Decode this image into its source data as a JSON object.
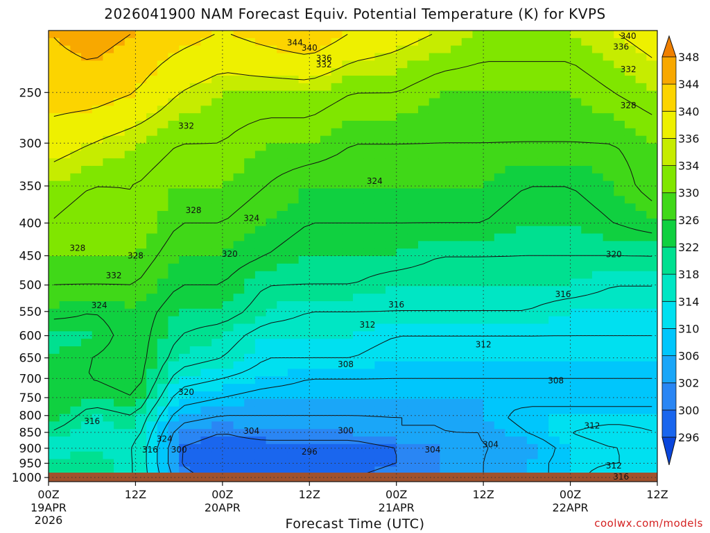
{
  "title": "2026041900 NAM Forecast Equiv. Potential Temperature (K) for KVPS",
  "credit": "coolwx.com/models",
  "colors": {
    "ground": "#a0522d",
    "contour": "#111111",
    "grid_dots": "#333333",
    "credit": "#d42020"
  },
  "chart_data": {
    "type": "heatmap",
    "title": "2026041900 NAM Forecast Equiv. Potential Temperature (K) for KVPS",
    "xlabel": "Forecast Time (UTC)",
    "ylabel": "",
    "variable_units": "K",
    "x_axis": {
      "range_hours": [
        0,
        84
      ],
      "ticks": [
        {
          "hour": 0,
          "label": "00Z",
          "sub": "19APR",
          "sub2": "2026"
        },
        {
          "hour": 12,
          "label": "12Z",
          "sub": "",
          "sub2": ""
        },
        {
          "hour": 24,
          "label": "00Z",
          "sub": "20APR",
          "sub2": ""
        },
        {
          "hour": 36,
          "label": "12Z",
          "sub": "",
          "sub2": ""
        },
        {
          "hour": 48,
          "label": "00Z",
          "sub": "21APR",
          "sub2": ""
        },
        {
          "hour": 60,
          "label": "12Z",
          "sub": "",
          "sub2": ""
        },
        {
          "hour": 72,
          "label": "00Z",
          "sub": "22APR",
          "sub2": ""
        },
        {
          "hour": 84,
          "label": "12Z",
          "sub": "",
          "sub2": ""
        }
      ]
    },
    "y_axis": {
      "units": "hPa",
      "scale": "log",
      "range": [
        1015,
        200
      ],
      "ticks": [
        250,
        300,
        350,
        400,
        450,
        500,
        550,
        600,
        650,
        700,
        750,
        800,
        850,
        900,
        950,
        1000
      ]
    },
    "grid": true,
    "colorbar": {
      "levels": [
        296,
        300,
        302,
        306,
        310,
        314,
        318,
        322,
        326,
        330,
        334,
        336,
        340,
        344,
        348
      ],
      "colors": [
        "#0a46dc",
        "#1a66ee",
        "#2a86f4",
        "#1aa6f8",
        "#00c6fc",
        "#00e0f0",
        "#00e6c4",
        "#00e090",
        "#10d040",
        "#40d818",
        "#80e600",
        "#c6ec00",
        "#eef000",
        "#fcd400",
        "#f8a800",
        "#f08000"
      ],
      "extends": "both"
    },
    "series": [
      {
        "name": "",
        "time_hours": [
          0,
          6,
          12,
          18,
          24,
          30,
          36,
          42,
          48,
          54,
          60,
          66,
          72,
          78,
          84
        ],
        "profiles_hPa": [
          1000,
          950,
          900,
          850,
          800,
          750,
          700,
          650,
          600,
          550,
          500,
          450,
          400,
          350,
          300,
          250,
          200
        ],
        "values_K": [
          [
            318,
            318,
            316,
            320,
            324,
            324,
            324,
            322,
            320,
            326,
            328,
            330,
            332,
            334,
            338,
            342,
            344
          ],
          [
            320,
            320,
            318,
            316,
            318,
            322,
            324,
            324,
            322,
            324,
            328,
            330,
            330,
            332,
            336,
            342,
            346
          ],
          [
            316,
            316,
            316,
            318,
            320,
            324,
            326,
            326,
            326,
            326,
            328,
            330,
            332,
            332,
            334,
            340,
            344
          ],
          [
            302,
            300,
            300,
            302,
            306,
            310,
            314,
            318,
            320,
            322,
            324,
            326,
            328,
            330,
            332,
            336,
            342
          ],
          [
            298,
            296,
            298,
            300,
            304,
            308,
            312,
            316,
            318,
            322,
            324,
            326,
            328,
            330,
            332,
            334,
            340
          ],
          [
            298,
            296,
            298,
            302,
            304,
            306,
            310,
            312,
            314,
            318,
            320,
            324,
            326,
            328,
            330,
            334,
            342
          ],
          [
            300,
            296,
            298,
            302,
            304,
            306,
            308,
            312,
            314,
            316,
            320,
            322,
            324,
            326,
            330,
            334,
            344
          ],
          [
            300,
            298,
            298,
            302,
            304,
            306,
            308,
            312,
            314,
            316,
            320,
            322,
            324,
            326,
            328,
            332,
            340
          ],
          [
            302,
            300,
            300,
            304,
            304,
            306,
            308,
            310,
            312,
            316,
            318,
            322,
            324,
            326,
            328,
            332,
            338
          ],
          [
            302,
            302,
            302,
            304,
            304,
            306,
            308,
            310,
            312,
            316,
            318,
            320,
            324,
            326,
            328,
            330,
            336
          ],
          [
            304,
            304,
            304,
            304,
            306,
            306,
            308,
            310,
            312,
            316,
            318,
            320,
            324,
            326,
            328,
            330,
            334
          ],
          [
            306,
            306,
            304,
            308,
            310,
            306,
            308,
            310,
            312,
            316,
            318,
            320,
            322,
            324,
            328,
            330,
            334
          ],
          [
            310,
            310,
            310,
            312,
            310,
            306,
            308,
            310,
            312,
            314,
            318,
            320,
            322,
            324,
            328,
            330,
            334
          ],
          [
            316,
            312,
            312,
            314,
            310,
            306,
            308,
            310,
            312,
            314,
            316,
            320,
            324,
            326,
            328,
            332,
            336
          ],
          [
            316,
            312,
            312,
            312,
            310,
            306,
            308,
            310,
            312,
            314,
            316,
            320,
            326,
            330,
            330,
            334,
            338
          ]
        ]
      }
    ],
    "contour_labels": [
      {
        "text": "344",
        "hour": 34,
        "p": 209
      },
      {
        "text": "340",
        "hour": 36,
        "p": 213
      },
      {
        "text": "336",
        "hour": 38,
        "p": 221
      },
      {
        "text": "332",
        "hour": 38,
        "p": 226
      },
      {
        "text": "340",
        "hour": 80,
        "p": 204
      },
      {
        "text": "336",
        "hour": 79,
        "p": 212
      },
      {
        "text": "332",
        "hour": 80,
        "p": 230
      },
      {
        "text": "328",
        "hour": 80,
        "p": 262
      },
      {
        "text": "332",
        "hour": 19,
        "p": 282
      },
      {
        "text": "324",
        "hour": 45,
        "p": 344
      },
      {
        "text": "328",
        "hour": 20,
        "p": 382
      },
      {
        "text": "324",
        "hour": 28,
        "p": 393
      },
      {
        "text": "328",
        "hour": 4,
        "p": 438
      },
      {
        "text": "328",
        "hour": 12,
        "p": 450
      },
      {
        "text": "320",
        "hour": 25,
        "p": 447
      },
      {
        "text": "320",
        "hour": 78,
        "p": 448
      },
      {
        "text": "332",
        "hour": 9,
        "p": 483
      },
      {
        "text": "316",
        "hour": 48,
        "p": 537
      },
      {
        "text": "316",
        "hour": 71,
        "p": 517
      },
      {
        "text": "324",
        "hour": 7,
        "p": 538
      },
      {
        "text": "312",
        "hour": 44,
        "p": 577
      },
      {
        "text": "312",
        "hour": 60,
        "p": 620
      },
      {
        "text": "308",
        "hour": 41,
        "p": 665
      },
      {
        "text": "308",
        "hour": 70,
        "p": 706
      },
      {
        "text": "320",
        "hour": 19,
        "p": 735
      },
      {
        "text": "316",
        "hour": 6,
        "p": 817
      },
      {
        "text": "304",
        "hour": 28,
        "p": 846
      },
      {
        "text": "300",
        "hour": 41,
        "p": 845
      },
      {
        "text": "312",
        "hour": 75,
        "p": 830
      },
      {
        "text": "324",
        "hour": 16,
        "p": 870
      },
      {
        "text": "316",
        "hour": 14,
        "p": 905
      },
      {
        "text": "300",
        "hour": 18,
        "p": 905
      },
      {
        "text": "296",
        "hour": 36,
        "p": 912
      },
      {
        "text": "304",
        "hour": 53,
        "p": 905
      },
      {
        "text": "304",
        "hour": 61,
        "p": 888
      },
      {
        "text": "312",
        "hour": 78,
        "p": 958
      },
      {
        "text": "316",
        "hour": 79,
        "p": 997
      }
    ]
  }
}
